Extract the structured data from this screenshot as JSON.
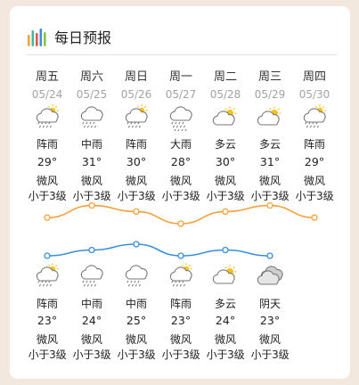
{
  "header": {
    "title": "每日预报",
    "logo_icon": "bar-chart-logo-icon"
  },
  "colors": {
    "high_line": "#f5a03c",
    "low_line": "#3a8fd8",
    "accent_sun": "#f7c21c"
  },
  "days": [
    {
      "weekday": "周五",
      "date": "05/24",
      "day": {
        "icon": "thunder-rain-sun-icon",
        "weather": "阵雨",
        "temp": "29°",
        "high": 29,
        "wind": "微风",
        "level": "小于3级"
      },
      "night": {
        "icon": "thunder-rain-sun-icon",
        "weather": "阵雨",
        "temp": "23°",
        "low": 23,
        "wind": "微风",
        "level": "小于3级"
      }
    },
    {
      "weekday": "周六",
      "date": "05/25",
      "day": {
        "icon": "rain-icon",
        "weather": "中雨",
        "temp": "31°",
        "high": 31,
        "wind": "微风",
        "level": "小于3级"
      },
      "night": {
        "icon": "rain-icon",
        "weather": "中雨",
        "temp": "24°",
        "low": 24,
        "wind": "微风",
        "level": "小于3级"
      }
    },
    {
      "weekday": "周日",
      "date": "05/26",
      "day": {
        "icon": "thunder-rain-sun-icon",
        "weather": "阵雨",
        "temp": "30°",
        "high": 30,
        "wind": "微风",
        "level": "小于3级"
      },
      "night": {
        "icon": "rain-icon",
        "weather": "中雨",
        "temp": "25°",
        "low": 25,
        "wind": "微风",
        "level": "小于3级"
      }
    },
    {
      "weekday": "周一",
      "date": "05/27",
      "day": {
        "icon": "heavy-rain-icon",
        "weather": "大雨",
        "temp": "28°",
        "high": 28,
        "wind": "微风",
        "level": "小于3级"
      },
      "night": {
        "icon": "thunder-rain-sun-icon",
        "weather": "阵雨",
        "temp": "23°",
        "low": 23,
        "wind": "微风",
        "level": "小于3级"
      }
    },
    {
      "weekday": "周二",
      "date": "05/28",
      "day": {
        "icon": "partly-cloudy-icon",
        "weather": "多云",
        "temp": "30°",
        "high": 30,
        "wind": "微风",
        "level": "小于3级"
      },
      "night": {
        "icon": "partly-cloudy-icon",
        "weather": "多云",
        "temp": "24°",
        "low": 24,
        "wind": "微风",
        "level": "小于3级"
      }
    },
    {
      "weekday": "周三",
      "date": "05/29",
      "day": {
        "icon": "partly-cloudy-icon",
        "weather": "多云",
        "temp": "31°",
        "high": 31,
        "wind": "微风",
        "level": "小于3级"
      },
      "night": {
        "icon": "overcast-icon",
        "weather": "阴天",
        "temp": "23°",
        "low": 23,
        "wind": "微风",
        "level": "小于3级"
      }
    },
    {
      "weekday": "周四",
      "date": "05/30",
      "day": {
        "icon": "thunder-rain-sun-icon",
        "weather": "阵雨",
        "temp": "29°",
        "high": 29,
        "wind": "微风",
        "level": "小于3级"
      },
      "night": null
    }
  ]
}
